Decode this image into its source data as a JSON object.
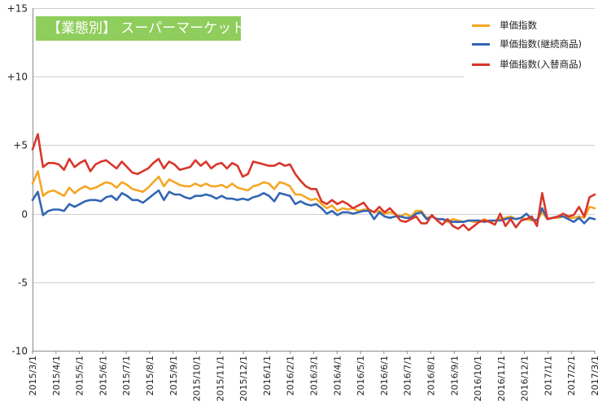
{
  "chart_data": {
    "type": "line",
    "title": "【業態別】 スーパーマーケット",
    "ylim": [
      -10,
      15
    ],
    "yticks": [
      "-10",
      "-5",
      "0",
      "+5",
      "+10",
      "+15"
    ],
    "x_tick_labels": [
      "2015/3/1",
      "2015/4/1",
      "2015/5/1",
      "2015/6/1",
      "2015/7/1",
      "2015/8/1",
      "2015/9/1",
      "2015/10/1",
      "2015/11/1",
      "2015/12/1",
      "2016/1/1",
      "2016/2/1",
      "2016/3/1",
      "2016/4/1",
      "2016/5/1",
      "2016/6/1",
      "2016/7/1",
      "2016/8/1",
      "2016/9/1",
      "2016/10/1",
      "2016/11/1",
      "2016/12/1",
      "2017/1/1",
      "2017/2/1",
      "2017/3/1"
    ],
    "grid": true,
    "legend_position": "top-right",
    "series": [
      {
        "name": "単価指数",
        "color": "#f5a623",
        "values": [
          2.2,
          3.1,
          1.3,
          1.6,
          1.7,
          1.5,
          1.3,
          1.9,
          1.5,
          1.8,
          2.0,
          1.8,
          1.9,
          2.1,
          2.3,
          2.2,
          1.9,
          2.3,
          2.1,
          1.8,
          1.7,
          1.6,
          1.9,
          2.3,
          2.7,
          2.0,
          2.5,
          2.3,
          2.1,
          2.0,
          2.0,
          2.2,
          2.0,
          2.2,
          2.0,
          2.0,
          2.1,
          1.9,
          2.2,
          1.9,
          1.8,
          1.7,
          2.0,
          2.1,
          2.3,
          2.2,
          1.8,
          2.3,
          2.2,
          2.0,
          1.4,
          1.4,
          1.2,
          1.0,
          1.1,
          0.7,
          0.4,
          0.6,
          0.2,
          0.4,
          0.3,
          0.4,
          0.2,
          0.3,
          0.3,
          0.1,
          0.2,
          0.0,
          0.1,
          0.0,
          -0.2,
          0.0,
          -0.2,
          0.2,
          0.2,
          -0.3,
          -0.2,
          -0.4,
          -0.4,
          -0.6,
          -0.4,
          -0.5,
          -0.6,
          -0.5,
          -0.6,
          -0.6,
          -0.4,
          -0.6,
          -0.5,
          -0.4,
          -0.3,
          -0.2,
          -0.4,
          -0.3,
          -0.4,
          -0.5,
          -0.5,
          0.1,
          -0.4,
          -0.3,
          -0.3,
          -0.2,
          -0.3,
          -0.3,
          -0.2,
          -0.3,
          0.5,
          0.4
        ]
      },
      {
        "name": "単価指数(継続商品)",
        "color": "#3366b3",
        "values": [
          1.0,
          1.6,
          -0.1,
          0.2,
          0.3,
          0.3,
          0.2,
          0.7,
          0.5,
          0.7,
          0.9,
          1.0,
          1.0,
          0.9,
          1.2,
          1.3,
          1.0,
          1.5,
          1.3,
          1.0,
          1.0,
          0.8,
          1.1,
          1.4,
          1.7,
          1.0,
          1.6,
          1.4,
          1.4,
          1.2,
          1.1,
          1.3,
          1.3,
          1.4,
          1.3,
          1.1,
          1.3,
          1.1,
          1.1,
          1.0,
          1.1,
          1.0,
          1.2,
          1.3,
          1.5,
          1.3,
          0.9,
          1.5,
          1.4,
          1.3,
          0.7,
          0.9,
          0.7,
          0.6,
          0.7,
          0.4,
          0.0,
          0.2,
          -0.1,
          0.1,
          0.1,
          0.0,
          0.1,
          0.2,
          0.2,
          -0.4,
          0.1,
          -0.2,
          -0.3,
          -0.2,
          -0.2,
          -0.3,
          -0.3,
          0.0,
          0.1,
          -0.4,
          -0.2,
          -0.4,
          -0.4,
          -0.5,
          -0.6,
          -0.6,
          -0.6,
          -0.5,
          -0.5,
          -0.5,
          -0.6,
          -0.5,
          -0.5,
          -0.5,
          -0.4,
          -0.3,
          -0.4,
          -0.3,
          0.0,
          -0.4,
          -0.5,
          0.4,
          -0.4,
          -0.3,
          -0.2,
          -0.2,
          -0.4,
          -0.6,
          -0.3,
          -0.7,
          -0.3,
          -0.4
        ]
      },
      {
        "name": "単価指数(入替商品)",
        "color": "#d9362b",
        "values": [
          4.7,
          5.8,
          3.4,
          3.7,
          3.7,
          3.6,
          3.2,
          4.0,
          3.4,
          3.7,
          3.9,
          3.1,
          3.6,
          3.8,
          3.9,
          3.6,
          3.3,
          3.8,
          3.4,
          3.0,
          2.9,
          3.1,
          3.3,
          3.7,
          4.0,
          3.3,
          3.8,
          3.6,
          3.2,
          3.3,
          3.4,
          3.9,
          3.5,
          3.8,
          3.3,
          3.6,
          3.7,
          3.3,
          3.7,
          3.5,
          2.7,
          2.9,
          3.8,
          3.7,
          3.6,
          3.5,
          3.5,
          3.7,
          3.5,
          3.6,
          2.9,
          2.4,
          2.0,
          1.8,
          1.8,
          0.9,
          0.7,
          1.0,
          0.7,
          0.9,
          0.7,
          0.4,
          0.6,
          0.8,
          0.3,
          0.1,
          0.5,
          0.1,
          0.4,
          0.0,
          -0.5,
          -0.6,
          -0.4,
          -0.2,
          -0.7,
          -0.7,
          -0.1,
          -0.5,
          -0.8,
          -0.4,
          -0.9,
          -1.1,
          -0.8,
          -1.2,
          -0.9,
          -0.6,
          -0.5,
          -0.6,
          -0.8,
          0.0,
          -0.9,
          -0.4,
          -1.0,
          -0.5,
          -0.4,
          -0.2,
          -0.9,
          1.5,
          -0.4,
          -0.3,
          -0.2,
          0.0,
          -0.2,
          -0.1,
          0.5,
          -0.2,
          1.2,
          1.4
        ]
      }
    ]
  }
}
